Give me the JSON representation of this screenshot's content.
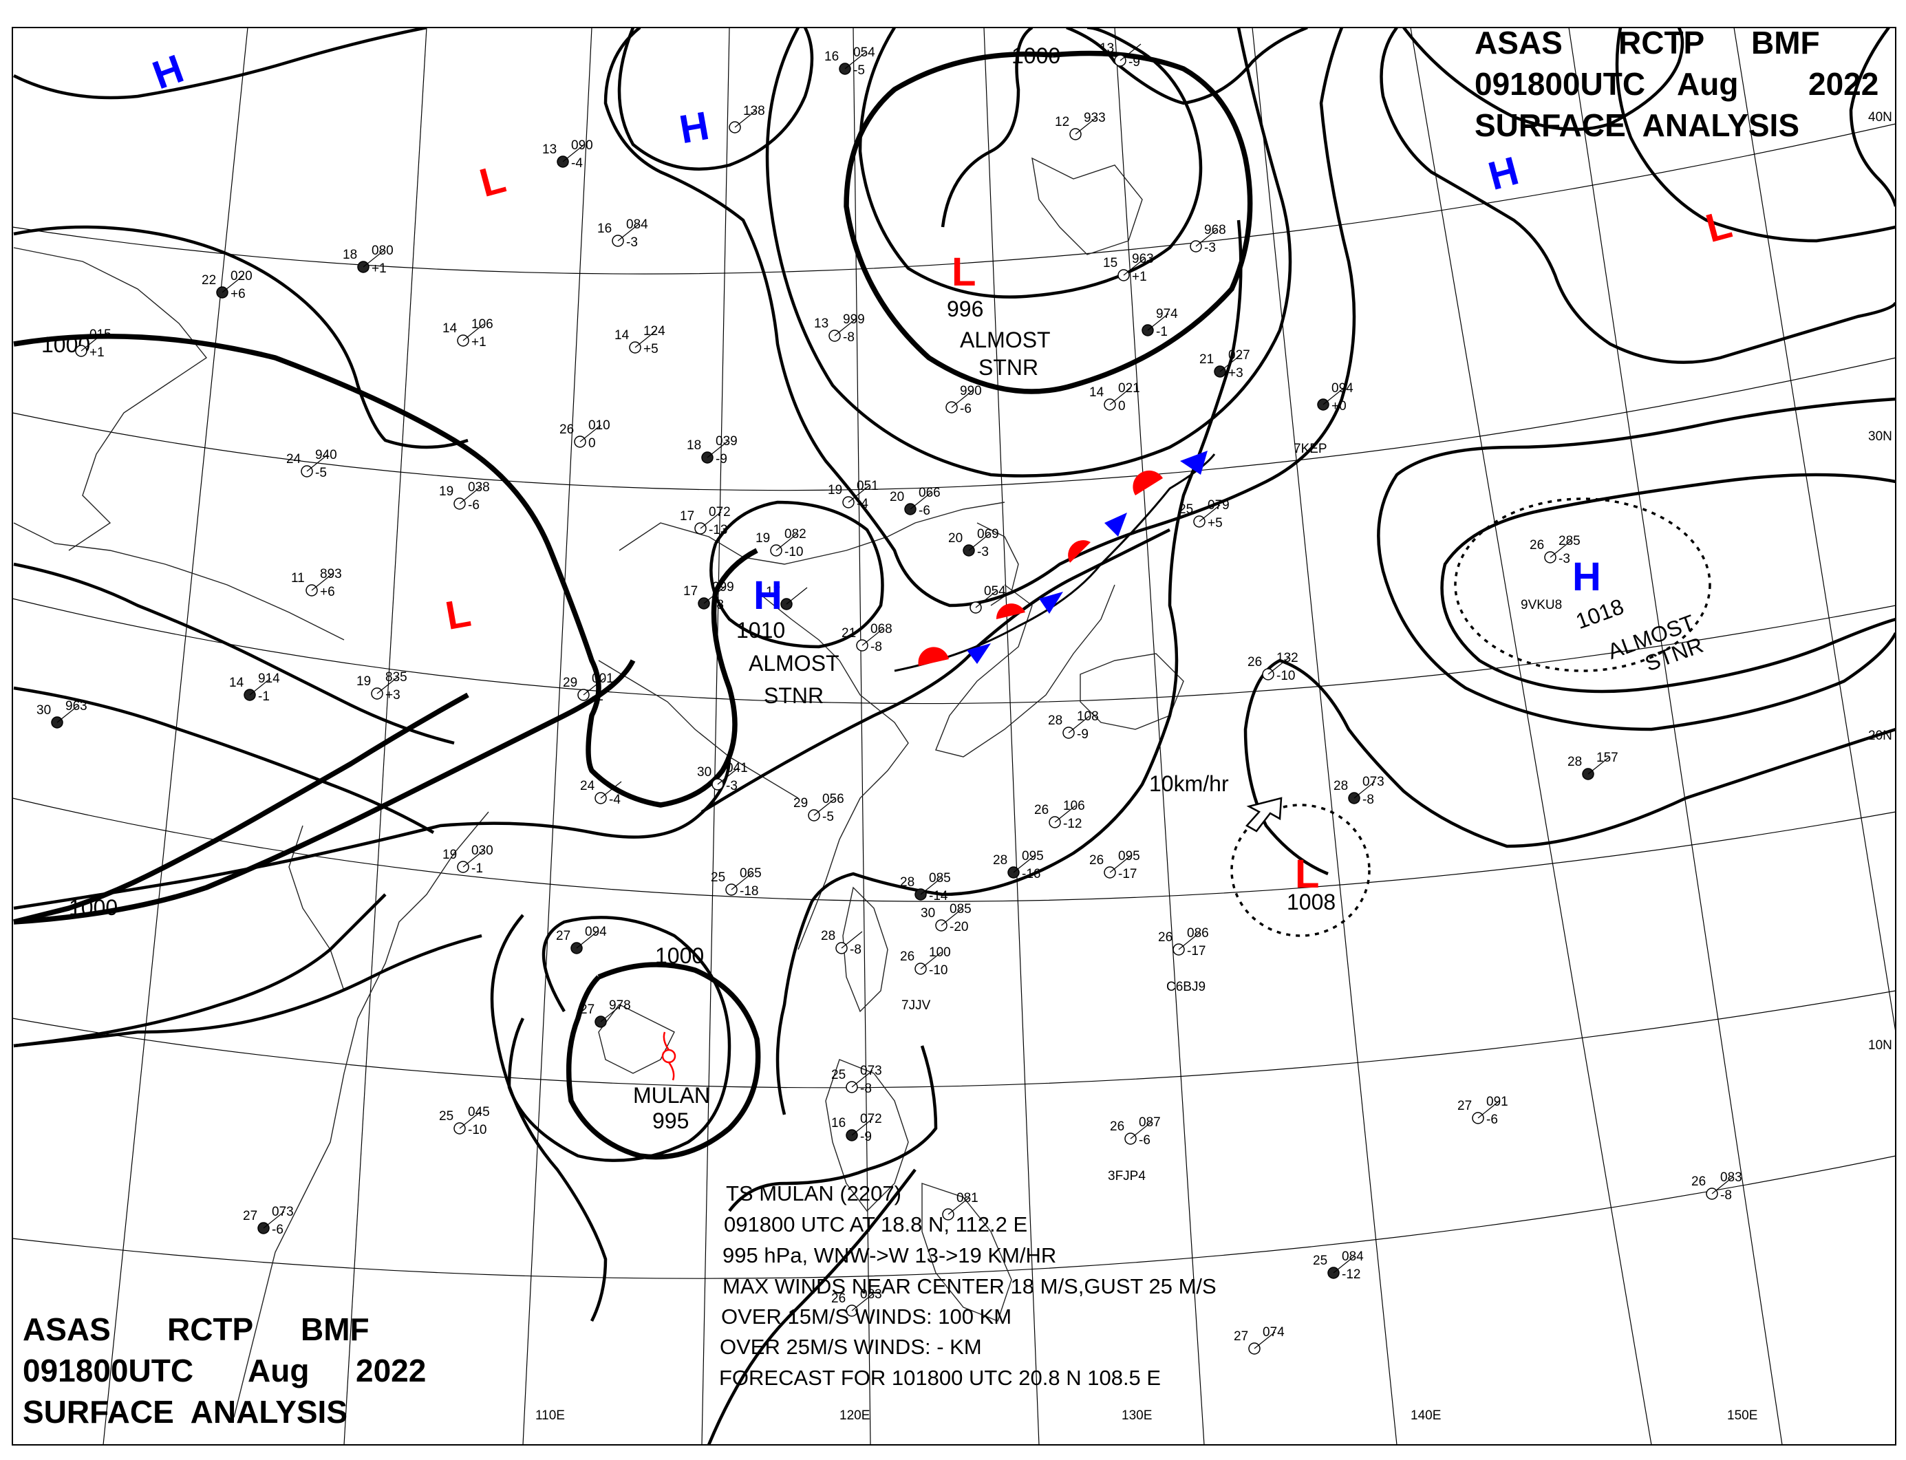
{
  "header_top": {
    "line1": [
      "ASAS",
      "RCTP",
      "BMF"
    ],
    "line2": [
      "091800UTC",
      "Aug",
      "2022"
    ],
    "line3": "SURFACE  ANALYSIS"
  },
  "header_bottom": {
    "line1": [
      "ASAS",
      "RCTP",
      "BMF"
    ],
    "line2": [
      "091800UTC",
      "Aug",
      "2022"
    ],
    "line3": "SURFACE  ANALYSIS"
  },
  "colors": {
    "high": "#0000ff",
    "low": "#ff0000",
    "line": "#000000",
    "front_cold": "#0000ff",
    "front_warm": "#ff0000"
  },
  "longitude_labels": [
    "110E",
    "120E",
    "130E",
    "140E",
    "150E"
  ],
  "latitude_labels": [
    "40N",
    "30N",
    "20N",
    "10N"
  ],
  "isobar_labels": [
    "1000",
    "1000",
    "1000",
    "1000"
  ],
  "pressure_centers": [
    {
      "type": "H",
      "value": ""
    },
    {
      "type": "H",
      "value": ""
    },
    {
      "type": "L",
      "value": ""
    },
    {
      "type": "L",
      "value": "996"
    },
    {
      "type": "H",
      "value": ""
    },
    {
      "type": "L",
      "value": ""
    },
    {
      "type": "L",
      "value": ""
    },
    {
      "type": "H",
      "value": "1010"
    },
    {
      "type": "H",
      "value": "1018"
    },
    {
      "type": "L",
      "value": "1008"
    }
  ],
  "system_notes": [
    {
      "line1": "ALMOST",
      "line2": "STNR"
    },
    {
      "line1": "ALMOST",
      "line2": "STNR"
    },
    {
      "line1": "ALMOST",
      "line2": "STNR"
    }
  ],
  "motion_label": "10km/hr",
  "typhoon": {
    "name": "MULAN",
    "pressure": "995"
  },
  "typhoon_info": [
    "TS  MULAN  (2207)",
    "091800 UTC  AT 18.8 N, 112.2 E",
    "995 hPa, WNW->W  13->19 KM/HR",
    "MAX WINDS NEAR CENTER 18 M/S,GUST 25 M/S",
    "OVER 15M/S WINDS: 100 KM",
    "OVER 25M/S WINDS: - KM",
    "FORECAST FOR 101800 UTC 20.8 N  108.5 E"
  ],
  "stations": [
    {
      "t": "16",
      "p": "054",
      "tend": "-5"
    },
    {
      "t": "13",
      "p": "",
      "tend": "-9"
    },
    {
      "t": "",
      "p": "138",
      "tend": ""
    },
    {
      "t": "13",
      "p": "090",
      "tend": "-4"
    },
    {
      "t": "12",
      "p": "933",
      "tend": ""
    },
    {
      "t": "16",
      "p": "084",
      "tend": "-3"
    },
    {
      "t": "18",
      "p": "080",
      "tend": "+1"
    },
    {
      "t": "15",
      "p": "963",
      "tend": "+1"
    },
    {
      "t": "",
      "p": "968",
      "tend": "-3"
    },
    {
      "t": "22",
      "p": "020",
      "tend": "+6"
    },
    {
      "t": "14",
      "p": "106",
      "tend": "+1"
    },
    {
      "t": "13",
      "p": "999",
      "tend": "-8"
    },
    {
      "t": "",
      "p": "974",
      "tend": "-1"
    },
    {
      "t": "14",
      "p": "124",
      "tend": "+5"
    },
    {
      "t": "",
      "p": "015",
      "tend": "+1"
    },
    {
      "t": "21",
      "p": "027",
      "tend": "+3"
    },
    {
      "t": "14",
      "p": "021",
      "tend": "0"
    },
    {
      "t": "",
      "p": "990",
      "tend": "-6"
    },
    {
      "t": "",
      "p": "094",
      "tend": "+0"
    },
    {
      "t": "26",
      "p": "010",
      "tend": "0"
    },
    {
      "t": "24",
      "p": "940",
      "tend": "-5"
    },
    {
      "t": "18",
      "p": "039",
      "tend": "-9"
    },
    {
      "t": "19",
      "p": "038",
      "tend": "-6"
    },
    {
      "t": "19",
      "p": "051",
      "tend": "-4"
    },
    {
      "t": "20",
      "p": "066",
      "tend": "-6"
    },
    {
      "t": "17",
      "p": "072",
      "tend": "-13"
    },
    {
      "t": "19",
      "p": "082",
      "tend": "-10"
    },
    {
      "t": "20",
      "p": "069",
      "tend": "-3"
    },
    {
      "t": "25",
      "p": "079",
      "tend": "+5"
    },
    {
      "t": "11",
      "p": "893",
      "tend": "+6"
    },
    {
      "t": "17",
      "p": "099",
      "tend": "-8"
    },
    {
      "t": "",
      "p": "054",
      "tend": ""
    },
    {
      "t": "21",
      "p": "068",
      "tend": "-8"
    },
    {
      "t": "14",
      "p": "914",
      "tend": "-1"
    },
    {
      "t": "19",
      "p": "835",
      "tend": "+3"
    },
    {
      "t": "29",
      "p": "001",
      "tend": "-2"
    },
    {
      "t": "17",
      "p": "",
      "tend": ""
    },
    {
      "t": "26",
      "p": "132",
      "tend": "-10"
    },
    {
      "t": "26",
      "p": "285",
      "tend": "-3"
    },
    {
      "t": "30",
      "p": "963",
      "tend": ""
    },
    {
      "t": "28",
      "p": "108",
      "tend": "-9"
    },
    {
      "t": "30",
      "p": "041",
      "tend": "-3"
    },
    {
      "t": "28",
      "p": "157",
      "tend": ""
    },
    {
      "t": "24",
      "p": "",
      "tend": "-4"
    },
    {
      "t": "29",
      "p": "056",
      "tend": "-5"
    },
    {
      "t": "28",
      "p": "073",
      "tend": "-8"
    },
    {
      "t": "26",
      "p": "106",
      "tend": "-12"
    },
    {
      "t": "19",
      "p": "030",
      "tend": "-1"
    },
    {
      "t": "28",
      "p": "095",
      "tend": "-16"
    },
    {
      "t": "26",
      "p": "095",
      "tend": "-17"
    },
    {
      "t": "25",
      "p": "065",
      "tend": "-18"
    },
    {
      "t": "28",
      "p": "085",
      "tend": "-14"
    },
    {
      "t": "30",
      "p": "085",
      "tend": "-20"
    },
    {
      "t": "26",
      "p": "086",
      "tend": "-17"
    },
    {
      "t": "27",
      "p": "094",
      "tend": ""
    },
    {
      "t": "28",
      "p": "",
      "tend": "-8"
    },
    {
      "t": "26",
      "p": "100",
      "tend": "-10"
    },
    {
      "t": "27",
      "p": "978",
      "tend": ""
    },
    {
      "t": "25",
      "p": "073",
      "tend": "-8"
    },
    {
      "t": "25",
      "p": "045",
      "tend": "-10"
    },
    {
      "t": "16",
      "p": "072",
      "tend": "-9"
    },
    {
      "t": "26",
      "p": "087",
      "tend": "-6"
    },
    {
      "t": "27",
      "p": "091",
      "tend": "-6"
    },
    {
      "t": "27",
      "p": "073",
      "tend": "-6"
    },
    {
      "t": "26",
      "p": "083",
      "tend": "-8"
    },
    {
      "t": "",
      "p": "081",
      "tend": ""
    },
    {
      "t": "25",
      "p": "084",
      "tend": "-12"
    },
    {
      "t": "26",
      "p": "083",
      "tend": ""
    },
    {
      "t": "27",
      "p": "074",
      "tend": ""
    }
  ],
  "ship_ids": [
    "7KEP",
    "9VKU8",
    "C6BJ9",
    "7JJV",
    "3FJP4"
  ]
}
